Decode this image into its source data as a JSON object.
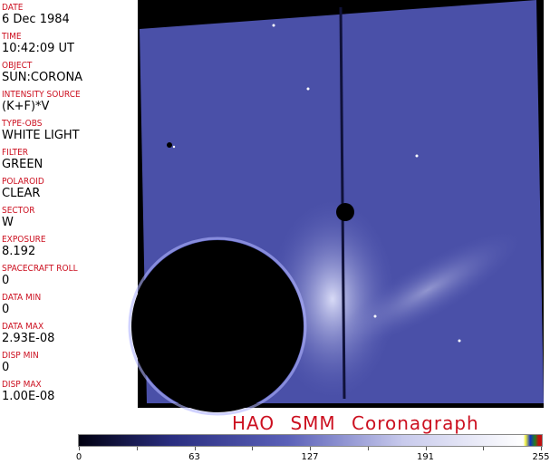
{
  "header_fields": [
    {
      "label": "DATE",
      "value": "6 Dec 1984"
    },
    {
      "label": "TIME",
      "value": "10:42:09 UT"
    },
    {
      "label": "OBJECT",
      "value": "SUN:CORONA"
    },
    {
      "label": "INTENSITY SOURCE",
      "value": "(K+F)*V"
    },
    {
      "label": "TYPE-OBS",
      "value": "WHITE LIGHT"
    },
    {
      "label": "FILTER",
      "value": "GREEN"
    },
    {
      "label": "POLAROID",
      "value": "CLEAR"
    },
    {
      "label": "SECTOR",
      "value": "W"
    },
    {
      "label": "EXPOSURE",
      "value": "8.192"
    },
    {
      "label": "SPACECRAFT ROLL",
      "value": "0"
    },
    {
      "label": "DATA MIN",
      "value": "0"
    },
    {
      "label": "DATA MAX",
      "value": "2.93E-08"
    },
    {
      "label": "DISP MIN",
      "value": "0"
    },
    {
      "label": "DISP MAX",
      "value": "1.00E-08"
    }
  ],
  "title": "HAO  SMM  Coronagraph",
  "colorbar": {
    "ticks": [
      "0",
      "63",
      "127",
      "191",
      "255"
    ],
    "colors": {
      "low": "#000010",
      "mid": "#5a60b8",
      "high": "#ffffff"
    }
  },
  "colors": {
    "label": "#cc1020",
    "image_blue": "#4a50a8"
  }
}
